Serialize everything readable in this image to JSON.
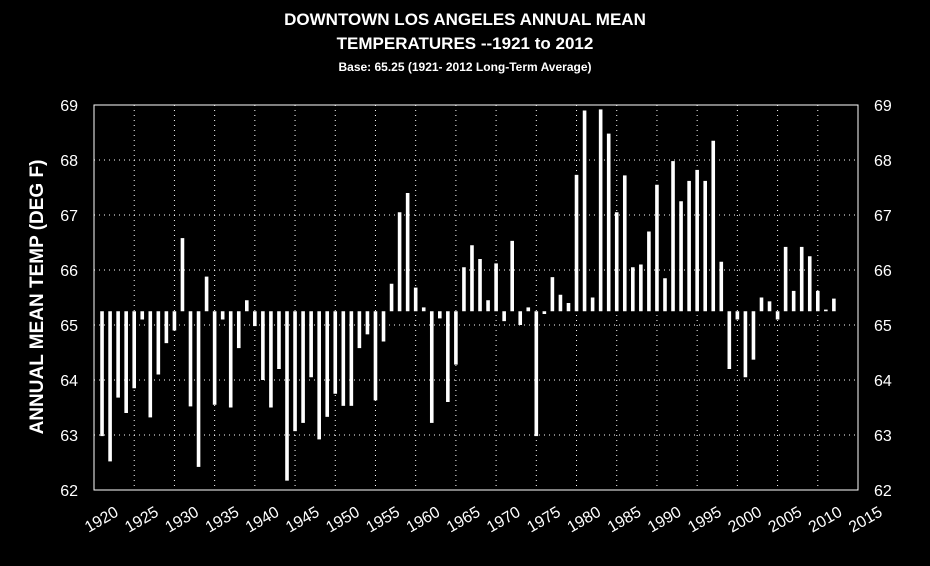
{
  "chart_data": {
    "type": "bar",
    "title_line1": "DOWNTOWN LOS ANGELES ANNUAL MEAN",
    "title_line2": "TEMPERATURES  --1921 to 2012",
    "subtitle": "Base: 65.25 (1921- 2012 Long-Term Average)",
    "ylabel": "ANNUAL MEAN TEMP (DEG F)",
    "xlabel": "",
    "baseline": 65.25,
    "ylim": [
      62,
      69
    ],
    "xlim": [
      1920,
      2015
    ],
    "y_ticks": [
      62,
      63,
      64,
      65,
      66,
      67,
      68,
      69
    ],
    "x_ticks": [
      1920,
      1925,
      1930,
      1935,
      1940,
      1945,
      1950,
      1955,
      1960,
      1965,
      1970,
      1975,
      1980,
      1985,
      1990,
      1995,
      2000,
      2005,
      2010,
      2015
    ],
    "grid": true,
    "bar_color": "#ffffff",
    "background": "#000000",
    "x": [
      1921,
      1922,
      1923,
      1924,
      1925,
      1926,
      1927,
      1928,
      1929,
      1930,
      1931,
      1932,
      1933,
      1934,
      1935,
      1936,
      1937,
      1938,
      1939,
      1940,
      1941,
      1942,
      1943,
      1944,
      1945,
      1946,
      1947,
      1948,
      1949,
      1950,
      1951,
      1952,
      1953,
      1954,
      1955,
      1956,
      1957,
      1958,
      1959,
      1960,
      1961,
      1962,
      1963,
      1964,
      1965,
      1966,
      1967,
      1968,
      1969,
      1970,
      1971,
      1972,
      1973,
      1974,
      1975,
      1976,
      1977,
      1978,
      1979,
      1980,
      1981,
      1982,
      1983,
      1984,
      1985,
      1986,
      1987,
      1988,
      1989,
      1990,
      1991,
      1992,
      1993,
      1994,
      1995,
      1996,
      1997,
      1998,
      1999,
      2000,
      2001,
      2002,
      2003,
      2004,
      2005,
      2006,
      2007,
      2008,
      2009,
      2010,
      2011,
      2012
    ],
    "values": [
      62.98,
      62.52,
      63.68,
      63.4,
      63.85,
      65.1,
      63.32,
      64.1,
      64.67,
      64.9,
      66.58,
      63.52,
      62.42,
      65.88,
      63.55,
      65.1,
      63.5,
      64.58,
      65.45,
      64.98,
      64.0,
      63.5,
      64.2,
      62.17,
      63.07,
      63.22,
      64.05,
      62.92,
      63.33,
      63.75,
      63.53,
      63.53,
      64.58,
      64.83,
      63.63,
      64.7,
      65.75,
      67.05,
      67.4,
      65.68,
      65.32,
      63.22,
      65.12,
      63.6,
      64.28,
      66.05,
      66.45,
      66.2,
      65.45,
      66.12,
      65.07,
      66.53,
      65.0,
      65.32,
      62.98,
      65.2,
      65.87,
      65.55,
      65.4,
      67.73,
      68.9,
      65.5,
      68.92,
      68.48,
      67.05,
      67.72,
      66.05,
      66.1,
      66.7,
      67.55,
      65.85,
      67.98,
      67.25,
      67.62,
      67.82,
      67.62,
      68.35,
      66.15,
      64.2,
      65.1,
      64.05,
      64.37,
      65.5,
      65.43,
      65.1,
      66.42,
      65.62,
      66.42,
      66.25,
      65.62,
      65.28,
      65.48
    ]
  }
}
